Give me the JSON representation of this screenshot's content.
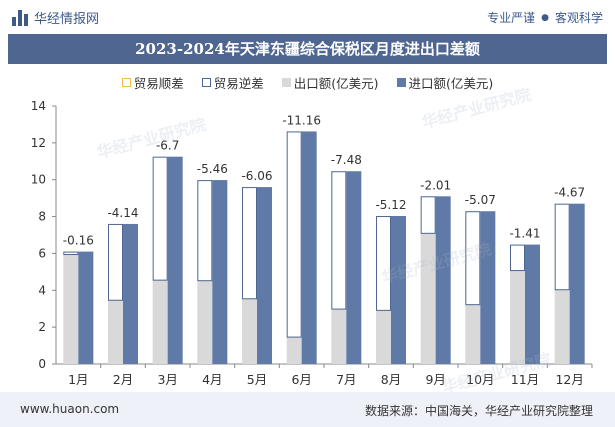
{
  "header": {
    "brand": "华经情报网",
    "tag1": "专业严谨",
    "tag2": "客观科学"
  },
  "watermark": "华经产业研究院",
  "chart_data": {
    "type": "bar",
    "title": "2023-2024年天津东疆综合保税区月度进出口差额",
    "categories": [
      "1月",
      "2月",
      "3月",
      "4月",
      "5月",
      "6月",
      "7月",
      "8月",
      "9月",
      "10月",
      "11月",
      "12月"
    ],
    "ylim": [
      0,
      14
    ],
    "yticks": [
      0,
      2,
      4,
      6,
      8,
      10,
      12,
      14
    ],
    "grid": false,
    "legend_position": "top",
    "series": [
      {
        "name": "贸易顺差",
        "values": [
          0,
          0,
          0,
          0,
          0,
          0,
          0,
          0,
          0,
          0,
          0,
          0
        ],
        "color": "#f0c040"
      },
      {
        "name": "贸易逆差",
        "values": [
          0.16,
          4.14,
          6.7,
          5.46,
          6.06,
          11.16,
          7.48,
          5.12,
          2.01,
          5.07,
          1.41,
          4.67
        ],
        "color": "#4e6690"
      },
      {
        "name": "出口额(亿美元)",
        "values": [
          5.94,
          3.46,
          4.55,
          4.52,
          3.54,
          1.46,
          2.98,
          2.91,
          7.09,
          3.22,
          5.07,
          4.03
        ],
        "color": "#d9d9d9"
      },
      {
        "name": "进口额(亿美元)",
        "values": [
          6.1,
          7.6,
          11.25,
          9.98,
          9.6,
          12.62,
          10.46,
          8.03,
          9.1,
          8.29,
          6.48,
          8.7
        ],
        "color": "#5f7aa6"
      }
    ],
    "data_labels": [
      "-0.16",
      "-4.14",
      "-6.7",
      "-5.46",
      "-6.06",
      "-11.16",
      "-7.48",
      "-5.12",
      "-2.01",
      "-5.07",
      "-1.41",
      "-4.67"
    ]
  },
  "footer": {
    "site": "www.huaon.com",
    "source": "数据来源：中国海关，华经产业研究院整理"
  }
}
